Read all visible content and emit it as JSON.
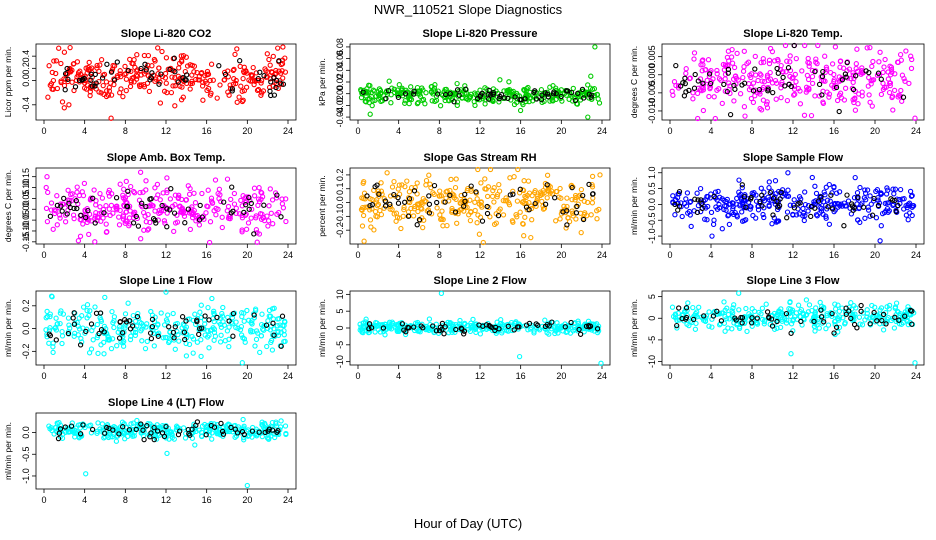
{
  "figure": {
    "title": "NWR_110521  Slope Diagnostics",
    "xlabel": "Hour of Day (UTC)"
  },
  "chart_data": [
    {
      "type": "scatter",
      "title": "Slope Li-820 CO2",
      "ylabel": "Licor ppm per min.",
      "color": "#ff0000",
      "xlim": [
        0,
        24
      ],
      "ylim": [
        -0.65,
        0.6
      ],
      "xticks": [
        0,
        4,
        8,
        12,
        16,
        20,
        24
      ],
      "yticks": [
        -0.4,
        0.0,
        0.2,
        0.4
      ],
      "ytick_labels": [
        "-0.4",
        "0.0",
        "0.2",
        "0.4"
      ],
      "center": 0.05,
      "spread": 0.18,
      "outliers": [
        [
          6.6,
          -0.62
        ],
        [
          23.5,
          0.55
        ],
        [
          2.0,
          -0.45
        ]
      ]
    },
    {
      "type": "scatter",
      "title": "Slope Li-820 Pressure",
      "ylabel": "kPa per min.",
      "color": "#00cc00",
      "xlim": [
        0,
        24
      ],
      "ylim": [
        -0.045,
        0.085
      ],
      "xticks": [
        0,
        4,
        8,
        12,
        16,
        20,
        24
      ],
      "yticks": [
        -0.04,
        -0.02,
        0.0,
        0.02,
        0.04,
        0.06,
        0.08
      ],
      "ytick_labels": [
        "-0.04",
        "-0.02",
        "0.00",
        "0.02",
        "0.04",
        "0.06",
        "0.08"
      ],
      "center": -0.002,
      "spread": 0.008,
      "outliers": [
        [
          23.3,
          0.08
        ],
        [
          22.6,
          -0.04
        ],
        [
          22.9,
          0.03
        ],
        [
          1.2,
          -0.035
        ]
      ]
    },
    {
      "type": "scatter",
      "title": "Slope Li-820 Temp.",
      "ylabel": "degrees C per min.",
      "color": "#ff00ff",
      "xlim": [
        0,
        24
      ],
      "ylim": [
        -0.0125,
        0.0085
      ],
      "xticks": [
        0,
        4,
        8,
        12,
        16,
        20,
        24
      ],
      "yticks": [
        -0.01,
        -0.005,
        0.0,
        0.005
      ],
      "ytick_labels": [
        "-0.010",
        "-0.005",
        "0.000",
        "0.005"
      ],
      "center": -0.0015,
      "spread": 0.0045,
      "outliers": [
        [
          23.9,
          -0.012
        ],
        [
          19.5,
          0.0075
        ]
      ]
    },
    {
      "type": "scatter",
      "title": "Slope Amb. Box Temp.",
      "ylabel": "degrees C per min.",
      "color": "#ff00ff",
      "xlim": [
        0,
        24
      ],
      "ylim": [
        -0.16,
        0.19
      ],
      "xticks": [
        0,
        4,
        8,
        12,
        16,
        20,
        24
      ],
      "yticks": [
        -0.15,
        -0.1,
        -0.05,
        0.0,
        0.05,
        0.1,
        0.15
      ],
      "ytick_labels": [
        "-0.15",
        "-0.10",
        "-0.05",
        "0.00",
        "0.05",
        "0.10",
        "0.15"
      ],
      "center": 0.01,
      "spread": 0.055,
      "outliers": [
        [
          5.0,
          -0.15
        ],
        [
          9.5,
          0.17
        ],
        [
          0.3,
          0.15
        ]
      ]
    },
    {
      "type": "scatter",
      "title": "Slope Gas Stream RH",
      "ylabel": "percent per min.",
      "color": "#ffa500",
      "xlim": [
        0,
        24
      ],
      "ylim": [
        -0.3,
        0.25
      ],
      "xticks": [
        0,
        4,
        8,
        12,
        16,
        20,
        24
      ],
      "yticks": [
        -0.2,
        -0.1,
        0.0,
        0.1,
        0.2
      ],
      "ytick_labels": [
        "-0.2",
        "-0.1",
        "0.0",
        "0.1",
        "0.2"
      ],
      "center": 0.0,
      "spread": 0.1,
      "outliers": [
        [
          0.6,
          -0.28
        ],
        [
          16.3,
          -0.24
        ],
        [
          23.8,
          0.2
        ]
      ]
    },
    {
      "type": "scatter",
      "title": "Slope Sample Flow",
      "ylabel": "ml/min per min.",
      "color": "#0000ff",
      "xlim": [
        0,
        24
      ],
      "ylim": [
        -1.25,
        1.15
      ],
      "xticks": [
        0,
        4,
        8,
        12,
        16,
        20,
        24
      ],
      "yticks": [
        -1.0,
        -0.5,
        0.0,
        0.5,
        1.0
      ],
      "ytick_labels": [
        "-1.0",
        "-0.5",
        "0.0",
        "0.5",
        "1.0"
      ],
      "center": 0.02,
      "spread": 0.28,
      "outliers": [
        [
          20.5,
          -1.15
        ],
        [
          4.1,
          -1.0
        ],
        [
          11.5,
          1.0
        ]
      ]
    },
    {
      "type": "scatter",
      "title": "Slope Line 1 Flow",
      "ylabel": "ml/min per min.",
      "color": "#00ffff",
      "xlim": [
        0,
        24
      ],
      "ylim": [
        -0.32,
        0.33
      ],
      "xticks": [
        0,
        4,
        8,
        12,
        16,
        20,
        24
      ],
      "yticks": [
        -0.2,
        0.0,
        0.2
      ],
      "ytick_labels": [
        "-0.2",
        "0.0",
        "0.2"
      ],
      "center": 0.0,
      "spread": 0.1,
      "outliers": [
        [
          12.0,
          0.32
        ],
        [
          19.5,
          -0.3
        ],
        [
          0.8,
          0.28
        ]
      ]
    },
    {
      "type": "scatter",
      "title": "Slope Line 2 Flow",
      "ylabel": "ml/min per min.",
      "color": "#00ffff",
      "xlim": [
        0,
        24
      ],
      "ylim": [
        -11,
        11
      ],
      "xticks": [
        0,
        4,
        8,
        12,
        16,
        20,
        24
      ],
      "yticks": [
        -10,
        -5,
        0,
        5,
        10
      ],
      "ytick_labels": [
        "-10",
        "-5",
        "0",
        "5",
        "10"
      ],
      "center": 0.2,
      "spread": 0.9,
      "outliers": [
        [
          8.2,
          10.3
        ],
        [
          23.9,
          -10.5
        ],
        [
          15.9,
          -8.5
        ]
      ]
    },
    {
      "type": "scatter",
      "title": "Slope Line 3 Flow",
      "ylabel": "ml/min per min.",
      "color": "#00ffff",
      "xlim": [
        0,
        24
      ],
      "ylim": [
        -10.8,
        6.3
      ],
      "xticks": [
        0,
        4,
        8,
        12,
        16,
        20,
        24
      ],
      "yticks": [
        -10,
        -5,
        0,
        5
      ],
      "ytick_labels": [
        "-10",
        "-5",
        "0",
        "5"
      ],
      "center": 0.3,
      "spread": 1.5,
      "outliers": [
        [
          23.9,
          -10.3
        ],
        [
          11.8,
          -8.2
        ],
        [
          6.7,
          5.8
        ]
      ]
    },
    {
      "type": "scatter",
      "title": "Slope Line 4 (LT) Flow",
      "ylabel": "ml/min per min.",
      "color": "#00ffff",
      "xlim": [
        0,
        24
      ],
      "ylim": [
        -1.3,
        0.45
      ],
      "xticks": [
        0,
        4,
        8,
        12,
        16,
        20,
        24
      ],
      "yticks": [
        -1.0,
        -0.5,
        0.0
      ],
      "ytick_labels": [
        "-1.0",
        "-0.5",
        "0.0"
      ],
      "center": 0.05,
      "spread": 0.1,
      "outliers": [
        [
          20.0,
          -1.22
        ],
        [
          4.1,
          -0.95
        ],
        [
          12.1,
          -0.48
        ]
      ]
    }
  ]
}
